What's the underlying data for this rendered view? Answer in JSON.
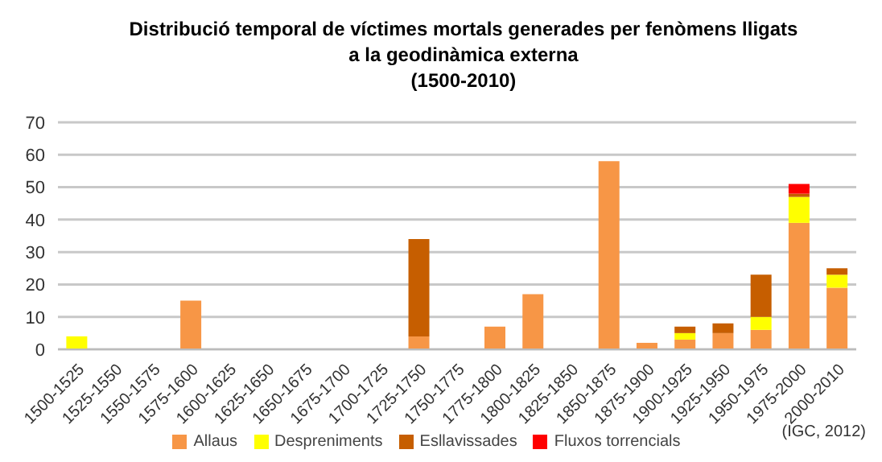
{
  "chart_data": {
    "type": "bar",
    "title": "Distribució temporal de víctimes mortals generades per fenòmens lligats\na la geodinàmica externa\n(1500-2010)",
    "categories": [
      "1500-1525",
      "1525-1550",
      "1550-1575",
      "1575-1600",
      "1600-1625",
      "1625-1650",
      "1650-1675",
      "1675-1700",
      "1700-1725",
      "1725-1750",
      "1750-1775",
      "1775-1800",
      "1800-1825",
      "1825-1850",
      "1850-1875",
      "1875-1900",
      "1900-1925",
      "1925-1950",
      "1950-1975",
      "1975-2000",
      "2000-2010"
    ],
    "stacked": true,
    "series": [
      {
        "name": "Allaus",
        "color": "#f79646",
        "values": [
          0,
          0,
          0,
          15,
          0,
          0,
          0,
          0,
          0,
          4,
          0,
          7,
          17,
          0,
          58,
          2,
          3,
          5,
          6,
          39,
          19
        ]
      },
      {
        "name": "Despreniments",
        "color": "#ffff00",
        "values": [
          4,
          0,
          0,
          0,
          0,
          0,
          0,
          0,
          0,
          0,
          0,
          0,
          0,
          0,
          0,
          0,
          2,
          0,
          4,
          8,
          4
        ]
      },
      {
        "name": "Esllavissades",
        "color": "#c65e00",
        "values": [
          0,
          0,
          0,
          0,
          0,
          0,
          0,
          0,
          0,
          30,
          0,
          0,
          0,
          0,
          0,
          0,
          2,
          3,
          13,
          1,
          2
        ]
      },
      {
        "name": "Fluxos torrencials",
        "color": "#ff0000",
        "values": [
          0,
          0,
          0,
          0,
          0,
          0,
          0,
          0,
          0,
          0,
          0,
          0,
          0,
          0,
          0,
          0,
          0,
          0,
          0,
          3,
          0
        ]
      }
    ],
    "ylim": [
      0,
      70
    ],
    "yticks": [
      0,
      10,
      20,
      30,
      40,
      50,
      60,
      70
    ],
    "grid": "y",
    "legend": "bottom",
    "annotations": [
      "(IGC, 2012)"
    ]
  }
}
